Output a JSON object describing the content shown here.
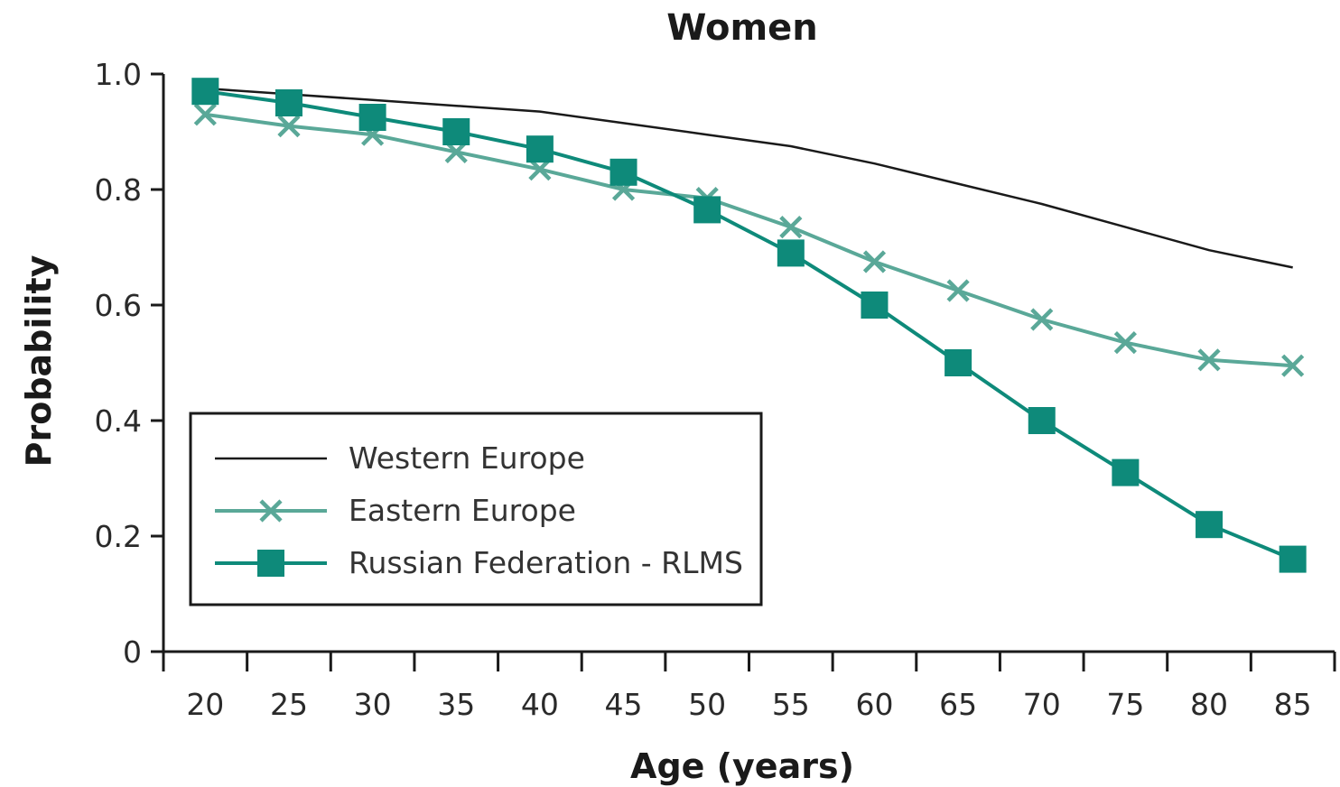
{
  "chart_data": {
    "type": "line",
    "title": "Women",
    "xlabel": "Age (years)",
    "ylabel": "Probability",
    "x": [
      20,
      25,
      30,
      35,
      40,
      45,
      50,
      55,
      60,
      65,
      70,
      75,
      80,
      85
    ],
    "xlim": [
      17.5,
      87.5
    ],
    "ylim": [
      0,
      1.0
    ],
    "yticks": [
      0,
      0.2,
      0.4,
      0.6,
      0.8,
      1.0
    ],
    "ytick_labels": [
      "0",
      "0.2",
      "0.4",
      "0.6",
      "0.8",
      "1.0"
    ],
    "xtick_labels": [
      "20",
      "25",
      "30",
      "35",
      "40",
      "45",
      "50",
      "55",
      "60",
      "65",
      "70",
      "75",
      "80",
      "85"
    ],
    "grid": false,
    "legend_position": "lower-left",
    "series": [
      {
        "name": "Western Europe",
        "color": "#1a1a1a",
        "marker": "none",
        "values": [
          0.975,
          0.965,
          0.955,
          0.945,
          0.935,
          0.915,
          0.895,
          0.875,
          0.845,
          0.81,
          0.775,
          0.735,
          0.695,
          0.665
        ]
      },
      {
        "name": "Eastern Europe",
        "color": "#5aa898",
        "marker": "x",
        "values": [
          0.93,
          0.91,
          0.895,
          0.865,
          0.835,
          0.8,
          0.785,
          0.735,
          0.675,
          0.625,
          0.575,
          0.535,
          0.505,
          0.495
        ]
      },
      {
        "name": "Russian Federation - RLMS",
        "color": "#0e8a7a",
        "marker": "square",
        "values": [
          0.97,
          0.95,
          0.925,
          0.9,
          0.87,
          0.83,
          0.765,
          0.69,
          0.6,
          0.5,
          0.4,
          0.31,
          0.22,
          0.16
        ]
      }
    ]
  }
}
